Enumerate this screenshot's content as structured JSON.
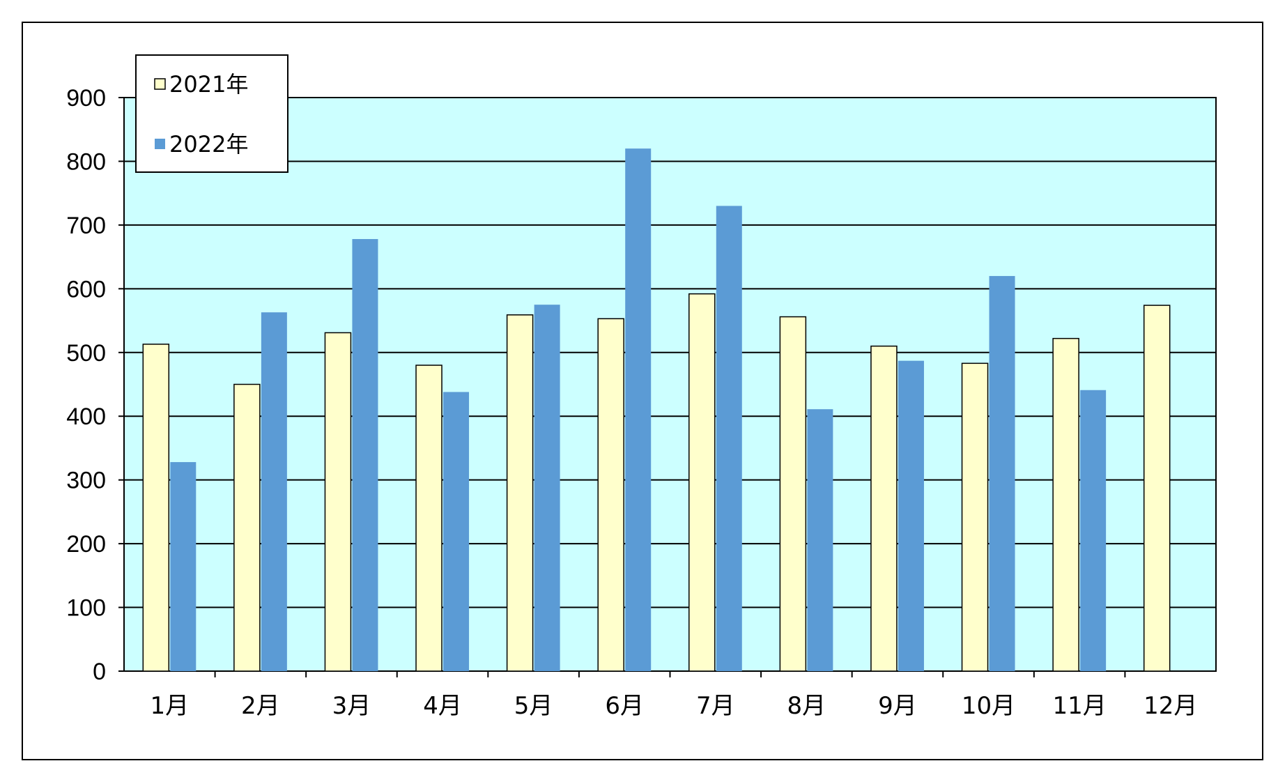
{
  "chart_data": {
    "type": "bar",
    "title": "",
    "xlabel": "",
    "ylabel": "",
    "categories": [
      "1月",
      "2月",
      "3月",
      "4月",
      "5月",
      "6月",
      "7月",
      "8月",
      "9月",
      "10月",
      "11月",
      "12月"
    ],
    "series": [
      {
        "name": "2021年",
        "color": "#ffffcc",
        "values": [
          513,
          450,
          531,
          480,
          559,
          553,
          592,
          556,
          510,
          483,
          522,
          574
        ]
      },
      {
        "name": "2022年",
        "color": "#5b9bd5",
        "values": [
          328,
          563,
          678,
          438,
          575,
          820,
          730,
          411,
          487,
          620,
          441,
          null
        ]
      }
    ],
    "ylim": [
      0,
      900
    ],
    "yticks": [
      0,
      100,
      200,
      300,
      400,
      500,
      600,
      700,
      800,
      900
    ],
    "grid": true,
    "plot_background": "#ccffff",
    "legend_position": "top-left"
  }
}
